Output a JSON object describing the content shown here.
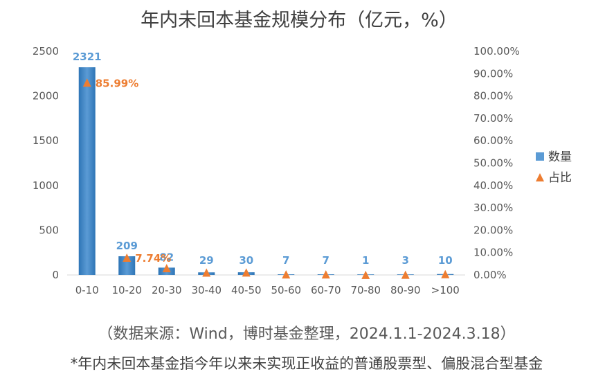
{
  "chart_data": {
    "type": "bar",
    "title": "年内未回本基金规模分布（亿元，%）",
    "categories": [
      "0-10",
      "10-20",
      "20-30",
      "30-40",
      "40-50",
      "50-60",
      "60-70",
      "70-80",
      "80-90",
      ">100"
    ],
    "series": [
      {
        "name": "数量",
        "type": "bar",
        "axis": "left",
        "values": [
          2321,
          209,
          82,
          29,
          30,
          7,
          7,
          1,
          3,
          10
        ],
        "value_labels": [
          "2321",
          "209",
          "82",
          "29",
          "30",
          "7",
          "7",
          "1",
          "3",
          "10"
        ],
        "color": "#5b9bd5"
      },
      {
        "name": "占比",
        "type": "marker",
        "marker": "triangle",
        "axis": "right",
        "values": [
          85.99,
          7.74,
          3.04,
          1.07,
          1.11,
          0.26,
          0.26,
          0.04,
          0.11,
          0.37
        ],
        "value_labels": [
          "85.99%",
          "7.74%",
          "",
          "",
          "",
          "",
          "",
          "",
          "",
          ""
        ],
        "color": "#ed7d31"
      }
    ],
    "y_left": {
      "ylim": [
        0,
        2500
      ],
      "ticks": [
        "2500",
        "2000",
        "1500",
        "1000",
        "500",
        "0"
      ]
    },
    "y_right": {
      "ylim": [
        0,
        100
      ],
      "ticks": [
        "100.00%",
        "90.00%",
        "80.00%",
        "70.00%",
        "60.00%",
        "50.00%",
        "40.00%",
        "30.00%",
        "20.00%",
        "10.00%",
        "0.00%"
      ]
    },
    "grid": false,
    "legend_position": "right"
  },
  "footer": {
    "source": "（数据来源：Wind，博时基金整理，2024.1.1-2024.3.18）",
    "note": "*年内未回本基金指今年以来未实现正收益的普通股票型、偏股混合型基金"
  }
}
